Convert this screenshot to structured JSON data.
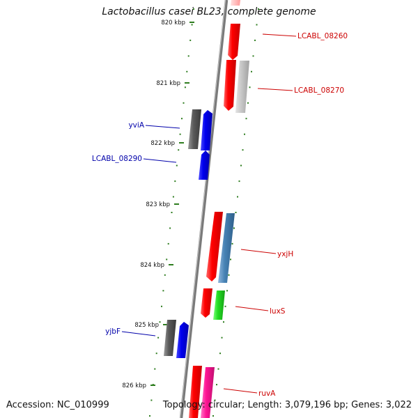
{
  "header": {
    "title": "Lactobacillus casei BL23, complete genome"
  },
  "footer": {
    "accession": "Accession: NC_010999",
    "topology": "Topology: circular; Length: 3,079,196 bp; Genes: 3,022"
  },
  "colors": {
    "backbone": "#7a7a7a",
    "tick": "#2e7d1f",
    "forward_label": "#cc0000",
    "reverse_label": "#0000aa"
  },
  "ticks": [
    {
      "label": "820 kbp"
    },
    {
      "label": "821 kbp"
    },
    {
      "label": "822 kbp"
    },
    {
      "label": "823 kbp"
    },
    {
      "label": "824 kbp"
    },
    {
      "label": "825 kbp"
    },
    {
      "label": "826 kbp"
    }
  ],
  "gene_labels": {
    "lcabl_08260": "LCABL_08260",
    "lcabl_08270": "LCABL_08270",
    "yviA": "yviA",
    "lcabl_08290": "LCABL_08290",
    "yxjH": "yxjH",
    "luxS": "luxS",
    "yjbF": "yjbF",
    "ruvA": "ruvA"
  }
}
